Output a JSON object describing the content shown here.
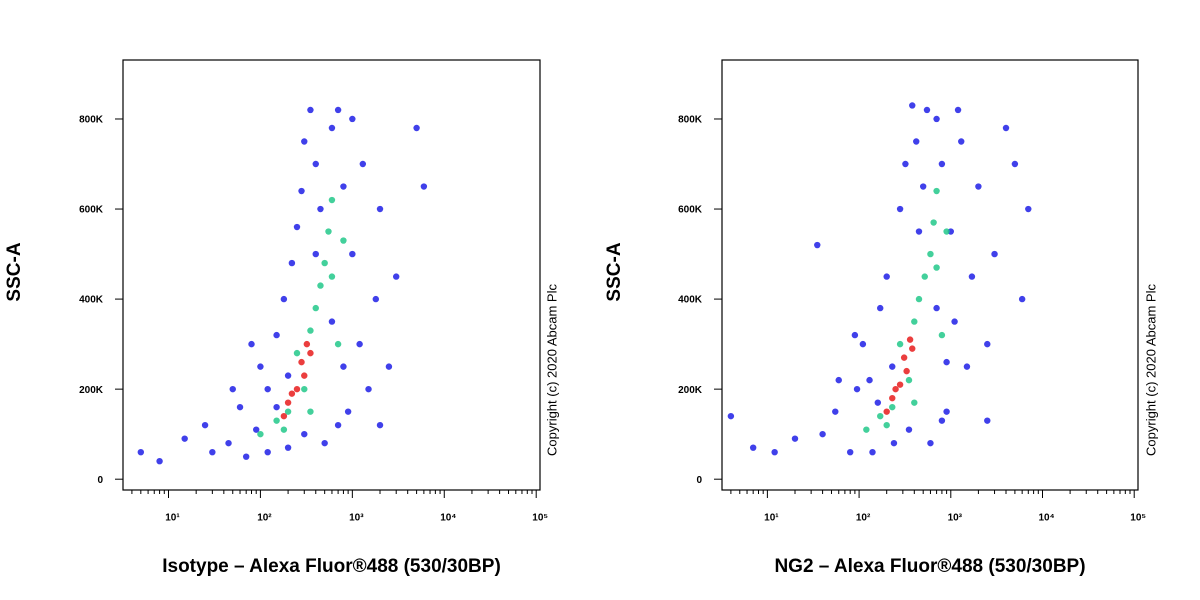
{
  "chart_data": [
    {
      "type": "scatter",
      "x_label": "Isotype – Alexa Fluor®488 (530/30BP)",
      "y_label": "SSC-A",
      "annotation": "Copyright (c) 2020 Abcam Plc",
      "log_x": true,
      "minor_ticks": true,
      "xlim": [
        3.2,
        110000
      ],
      "ylim": [
        -24000,
        931000
      ],
      "xticks": [
        {
          "value": 10,
          "label": "10¹"
        },
        {
          "value": 100,
          "label": "10²"
        },
        {
          "value": 1000,
          "label": "10³"
        },
        {
          "value": 10000,
          "label": "10⁴"
        },
        {
          "value": 100000,
          "label": "10⁵"
        }
      ],
      "yticks": [
        0,
        {
          "value": 200000,
          "label": "200K"
        },
        {
          "value": 400000,
          "label": "400K"
        },
        {
          "value": 600000,
          "label": "600K"
        },
        {
          "value": 800000,
          "label": "800K"
        }
      ],
      "series": [
        {
          "color": "#1e1ee6",
          "x": [
            5,
            8,
            15,
            25,
            30,
            45,
            60,
            70,
            90,
            100,
            120,
            150,
            180,
            200,
            220,
            250,
            280,
            300,
            350,
            400,
            450,
            500,
            600,
            700,
            800,
            900,
            1000,
            1200,
            1300,
            1500,
            1800,
            2000,
            2500,
            3000,
            5000,
            6000,
            150,
            300,
            600,
            800,
            1000,
            400,
            200,
            120,
            80,
            50,
            2000,
            700
          ],
          "y": [
            60000,
            40000,
            90000,
            120000,
            60000,
            80000,
            160000,
            50000,
            110000,
            250000,
            60000,
            320000,
            400000,
            70000,
            480000,
            560000,
            640000,
            750000,
            820000,
            700000,
            600000,
            80000,
            780000,
            820000,
            650000,
            150000,
            500000,
            300000,
            700000,
            200000,
            400000,
            600000,
            250000,
            450000,
            780000,
            650000,
            160000,
            100000,
            350000,
            250000,
            800000,
            500000,
            230000,
            200000,
            300000,
            200000,
            120000,
            120000
          ]
        },
        {
          "color": "#22c88a",
          "x": [
            100,
            150,
            200,
            300,
            350,
            400,
            450,
            500,
            550,
            600,
            250,
            180,
            700,
            350,
            600,
            800
          ],
          "y": [
            100000,
            130000,
            150000,
            200000,
            330000,
            380000,
            430000,
            480000,
            550000,
            620000,
            280000,
            110000,
            300000,
            150000,
            450000,
            530000
          ]
        },
        {
          "color": "#e81c1c",
          "x": [
            200,
            250,
            300,
            280,
            220,
            350,
            320,
            180
          ],
          "y": [
            170000,
            200000,
            230000,
            260000,
            190000,
            280000,
            300000,
            140000
          ]
        }
      ]
    },
    {
      "type": "scatter",
      "x_label": "NG2 – Alexa Fluor®488 (530/30BP)",
      "y_label": "SSC-A",
      "annotation": "Copyright (c) 2020 Abcam Plc",
      "log_x": true,
      "minor_ticks": true,
      "xlim": [
        3.2,
        110000
      ],
      "ylim": [
        -24000,
        931000
      ],
      "xticks": [
        {
          "value": 10,
          "label": "10¹"
        },
        {
          "value": 100,
          "label": "10²"
        },
        {
          "value": 1000,
          "label": "10³"
        },
        {
          "value": 10000,
          "label": "10⁴"
        },
        {
          "value": 100000,
          "label": "10⁵"
        }
      ],
      "yticks": [
        0,
        {
          "value": 200000,
          "label": "200K"
        },
        {
          "value": 400000,
          "label": "400K"
        },
        {
          "value": 600000,
          "label": "600K"
        },
        {
          "value": 800000,
          "label": "800K"
        }
      ],
      "series": [
        {
          "color": "#1e1ee6",
          "x": [
            4,
            7,
            12,
            20,
            35,
            40,
            55,
            80,
            95,
            110,
            140,
            170,
            200,
            240,
            280,
            320,
            380,
            420,
            500,
            550,
            600,
            700,
            800,
            900,
            1000,
            1100,
            1300,
            1500,
            1700,
            2000,
            2500,
            3000,
            4000,
            5000,
            6000,
            7000,
            160,
            350,
            700,
            900,
            1200,
            450,
            230,
            130,
            90,
            60,
            2500,
            800
          ],
          "y": [
            140000,
            70000,
            60000,
            90000,
            520000,
            100000,
            150000,
            60000,
            200000,
            300000,
            60000,
            380000,
            450000,
            80000,
            600000,
            700000,
            830000,
            750000,
            650000,
            820000,
            80000,
            800000,
            700000,
            150000,
            550000,
            350000,
            750000,
            250000,
            450000,
            650000,
            300000,
            500000,
            780000,
            700000,
            400000,
            600000,
            170000,
            110000,
            380000,
            260000,
            820000,
            550000,
            250000,
            220000,
            320000,
            220000,
            130000,
            130000
          ]
        },
        {
          "color": "#22c88a",
          "x": [
            120,
            170,
            230,
            350,
            400,
            450,
            520,
            600,
            650,
            700,
            280,
            200,
            800,
            400,
            700,
            900
          ],
          "y": [
            110000,
            140000,
            160000,
            220000,
            350000,
            400000,
            450000,
            500000,
            570000,
            640000,
            300000,
            120000,
            320000,
            170000,
            470000,
            550000
          ]
        },
        {
          "color": "#e81c1c",
          "x": [
            230,
            280,
            330,
            310,
            250,
            380,
            360,
            200
          ],
          "y": [
            180000,
            210000,
            240000,
            270000,
            200000,
            290000,
            310000,
            150000
          ]
        }
      ]
    }
  ]
}
